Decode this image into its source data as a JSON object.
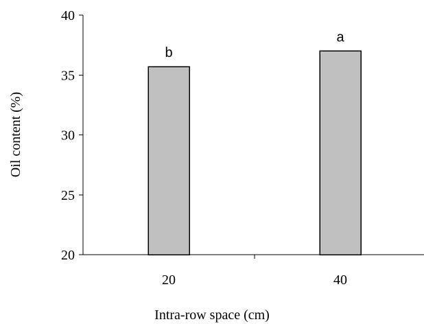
{
  "chart_data": {
    "type": "bar",
    "categories": [
      "20",
      "40"
    ],
    "values": [
      35.7,
      37.0
    ],
    "annotations": [
      "b",
      "a"
    ],
    "xlabel": "Intra-row space (cm)",
    "ylabel": "Oil content (%)",
    "ylim": [
      20,
      40
    ],
    "yticks": [
      "20",
      "25",
      "30",
      "35",
      "40"
    ],
    "grid": false,
    "bar_color": "#c0c0c0"
  }
}
